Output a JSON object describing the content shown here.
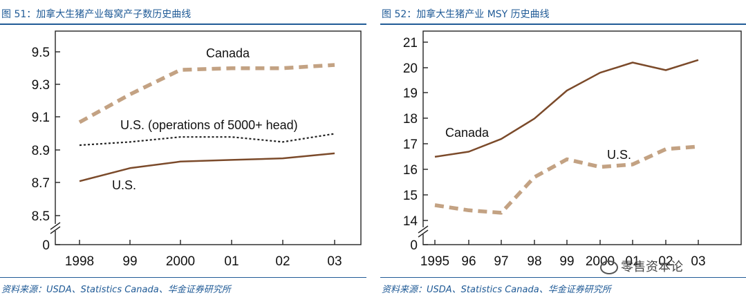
{
  "watermark": "零售资本论",
  "chart_data": [
    {
      "type": "line",
      "figure_title": "图 51：加拿大生猪产业每窝产子数历史曲线",
      "source": "资料来源：USDA、Statistics Canada、华金证券研究所",
      "categories": [
        "1998",
        "99",
        "2000",
        "01",
        "02",
        "03"
      ],
      "x": [
        1998,
        1999,
        2000,
        2001,
        2002,
        2003
      ],
      "ylim": [
        8.5,
        9.6
      ],
      "axis_break": true,
      "yticks": [
        "9.5",
        "9.3",
        "9.1",
        "8.9",
        "8.7",
        "8.5",
        "0"
      ],
      "series": [
        {
          "name": "Canada",
          "label": "Canada",
          "style": "dashed-thick",
          "color": "#c3a283",
          "values": [
            9.07,
            9.24,
            9.39,
            9.4,
            9.4,
            9.42
          ]
        },
        {
          "name": "U.S. (operations of 5000+ head)",
          "label": "U.S. (operations of 5000+ head)",
          "style": "dotted",
          "color": "#222222",
          "values": [
            8.93,
            8.95,
            8.98,
            8.98,
            8.95,
            9.0
          ]
        },
        {
          "name": "U.S.",
          "label": "U.S.",
          "style": "solid",
          "color": "#7b4a2a",
          "values": [
            8.71,
            8.79,
            8.83,
            8.84,
            8.85,
            8.88
          ]
        }
      ]
    },
    {
      "type": "line",
      "figure_title": "图 52：加拿大生猪产业 MSY 历史曲线",
      "source": "资料来源：USDA、Statistics Canada、华金证券研究所",
      "categories": [
        "1995",
        "96",
        "97",
        "98",
        "99",
        "2000",
        "01",
        "02",
        "03"
      ],
      "x": [
        1995,
        1996,
        1997,
        1998,
        1999,
        2000,
        2001,
        2002,
        2003
      ],
      "ylim": [
        13.5,
        21
      ],
      "axis_break": true,
      "yticks": [
        "21",
        "20",
        "19",
        "18",
        "17",
        "16",
        "15",
        "14",
        "0"
      ],
      "series": [
        {
          "name": "Canada",
          "label": "Canada",
          "style": "solid",
          "color": "#7b4a2a",
          "values": [
            16.5,
            16.7,
            17.2,
            18.0,
            19.1,
            19.8,
            20.2,
            19.9,
            20.3
          ]
        },
        {
          "name": "U.S.",
          "label": "U.S.",
          "style": "dashed-thick",
          "color": "#c3a283",
          "values": [
            14.6,
            14.4,
            14.3,
            15.7,
            16.4,
            16.1,
            16.2,
            16.8,
            16.9
          ]
        }
      ]
    }
  ]
}
